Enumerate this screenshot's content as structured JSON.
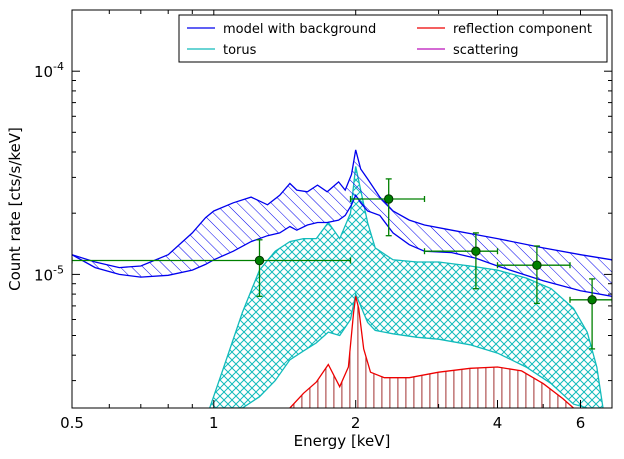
{
  "chart_data": {
    "type": "line",
    "xlabel": "Energy [keV]",
    "ylabel": "Count rate [cts/s/keV]",
    "x_scale": "log",
    "y_scale": "log",
    "xlim": [
      0.5,
      7.0
    ],
    "ylim": [
      2.2e-06,
      0.0002
    ],
    "x_ticks": [
      {
        "value": 0.5,
        "label": "0.5"
      },
      {
        "value": 1,
        "label": "1"
      },
      {
        "value": 2,
        "label": "2"
      },
      {
        "value": 4,
        "label": "4"
      },
      {
        "value": 6,
        "label": "6"
      }
    ],
    "y_ticks": [
      {
        "value": 1e-05,
        "base": "10",
        "exp": "-5"
      },
      {
        "value": 0.0001,
        "base": "10",
        "exp": "-4"
      }
    ],
    "legend": {
      "placement": "top-right",
      "entries": [
        {
          "label": "model with background",
          "color": "#0000ee"
        },
        {
          "label": "reflection component",
          "color": "#ee0000"
        },
        {
          "label": "torus",
          "color": "#11bbbb"
        },
        {
          "label": "scattering",
          "color": "#bb11bb"
        }
      ]
    },
    "colors": {
      "model": "#0000ee",
      "torus": "#11bbbb",
      "reflection": "#ee0000",
      "reflection_hatch": "#a03030",
      "data": "#008000"
    },
    "series": [
      {
        "name": "model with background",
        "kind": "band",
        "points": [
          [
            0.5,
            1.25e-05,
            1.25e-05
          ],
          [
            0.56,
            1.08e-05,
            1.15e-05
          ],
          [
            0.63,
            1e-05,
            1.08e-05
          ],
          [
            0.7,
            9.7e-06,
            1.1e-05
          ],
          [
            0.8,
            9.9e-06,
            1.25e-05
          ],
          [
            0.9,
            1.05e-05,
            1.6e-05
          ],
          [
            0.96,
            1.12e-05,
            1.9e-05
          ],
          [
            1.0,
            1.18e-05,
            2.05e-05
          ],
          [
            1.1,
            1.3e-05,
            2.25e-05
          ],
          [
            1.2,
            1.45e-05,
            2.4e-05
          ],
          [
            1.3,
            1.55e-05,
            2.2e-05
          ],
          [
            1.38,
            1.6e-05,
            2.45e-05
          ],
          [
            1.45,
            1.72e-05,
            2.8e-05
          ],
          [
            1.5,
            1.65e-05,
            2.6e-05
          ],
          [
            1.58,
            1.75e-05,
            2.55e-05
          ],
          [
            1.66,
            1.8e-05,
            2.75e-05
          ],
          [
            1.74,
            1.8e-05,
            2.55e-05
          ],
          [
            1.84,
            1.85e-05,
            2.85e-05
          ],
          [
            1.9,
            1.95e-05,
            2.6e-05
          ],
          [
            1.96,
            2.2e-05,
            3.1e-05
          ],
          [
            2.0,
            2.45e-05,
            4.1e-05
          ],
          [
            2.05,
            2.25e-05,
            3.3e-05
          ],
          [
            2.12,
            2.05e-05,
            2.95e-05
          ],
          [
            2.25,
            1.95e-05,
            2.4e-05
          ],
          [
            2.4,
            1.6e-05,
            2.05e-05
          ],
          [
            2.6,
            1.4e-05,
            1.85e-05
          ],
          [
            2.8,
            1.3e-05,
            1.75e-05
          ],
          [
            3.2,
            1.28e-05,
            1.65e-05
          ],
          [
            3.6,
            1.2e-05,
            1.57e-05
          ],
          [
            4.0,
            1.1e-05,
            1.5e-05
          ],
          [
            5.0,
            9.3e-06,
            1.35e-05
          ],
          [
            6.0,
            8.3e-06,
            1.25e-05
          ],
          [
            7.0,
            7.8e-06,
            1.18e-05
          ]
        ]
      },
      {
        "name": "torus",
        "kind": "band",
        "points": [
          [
            0.98,
            2.2e-06,
            2.2e-06
          ],
          [
            1.05,
            2.2e-06,
            3.5e-06
          ],
          [
            1.15,
            2.2e-06,
            6.5e-06
          ],
          [
            1.25,
            2.5e-06,
            1.05e-05
          ],
          [
            1.35,
            3e-06,
            1.3e-05
          ],
          [
            1.45,
            3.8e-06,
            1.45e-05
          ],
          [
            1.55,
            4.2e-06,
            1.5e-05
          ],
          [
            1.65,
            4.6e-06,
            1.5e-05
          ],
          [
            1.75,
            5.2e-06,
            1.8e-05
          ],
          [
            1.85,
            5e-06,
            1.5e-05
          ],
          [
            1.95,
            6e-06,
            2e-05
          ],
          [
            2.0,
            8e-06,
            3.4e-05
          ],
          [
            2.05,
            7e-06,
            2.6e-05
          ],
          [
            2.12,
            5.8e-06,
            1.8e-05
          ],
          [
            2.2,
            5.3e-06,
            1.35e-05
          ],
          [
            2.4,
            5.1e-06,
            1.18e-05
          ],
          [
            2.7,
            4.9e-06,
            1.15e-05
          ],
          [
            3.0,
            4.8e-06,
            1.15e-05
          ],
          [
            3.5,
            4.5e-06,
            1.1e-05
          ],
          [
            4.0,
            4.1e-06,
            1.05e-05
          ],
          [
            4.6,
            3.5e-06,
            9.6e-06
          ],
          [
            5.2,
            2.9e-06,
            8.5e-06
          ],
          [
            5.8,
            2.3e-06,
            6.8e-06
          ],
          [
            6.2,
            2.2e-06,
            5.2e-06
          ],
          [
            6.5,
            2.2e-06,
            3.5e-06
          ],
          [
            6.7,
            2.2e-06,
            2.2e-06
          ]
        ]
      },
      {
        "name": "reflection component",
        "kind": "line",
        "points": [
          [
            1.45,
            2.2e-06
          ],
          [
            1.55,
            2.6e-06
          ],
          [
            1.65,
            2.95e-06
          ],
          [
            1.75,
            3.6e-06
          ],
          [
            1.85,
            2.8e-06
          ],
          [
            1.93,
            3.5e-06
          ],
          [
            1.98,
            6.5e-06
          ],
          [
            2.0,
            7.8e-06
          ],
          [
            2.03,
            6.8e-06
          ],
          [
            2.08,
            4.3e-06
          ],
          [
            2.15,
            3.3e-06
          ],
          [
            2.3,
            3.1e-06
          ],
          [
            2.6,
            3.1e-06
          ],
          [
            3.0,
            3.3e-06
          ],
          [
            3.5,
            3.45e-06
          ],
          [
            4.0,
            3.5e-06
          ],
          [
            4.5,
            3.35e-06
          ],
          [
            5.0,
            2.9e-06
          ],
          [
            5.5,
            2.45e-06
          ],
          [
            5.8,
            2.2e-06
          ]
        ]
      },
      {
        "name": "data",
        "kind": "errorbar",
        "points": [
          {
            "x": 1.25,
            "xerr": [
              0.5,
              1.95
            ],
            "y": 1.17e-05,
            "yerr": [
              7.8e-06,
              1.48e-05
            ]
          },
          {
            "x": 2.35,
            "xerr": [
              1.95,
              2.8
            ],
            "y": 2.35e-05,
            "yerr": [
              1.55e-05,
              2.95e-05
            ]
          },
          {
            "x": 3.6,
            "xerr": [
              2.8,
              4.0
            ],
            "y": 1.3e-05,
            "yerr": [
              8.5e-06,
              1.6e-05
            ]
          },
          {
            "x": 4.85,
            "xerr": [
              4.0,
              5.7
            ],
            "y": 1.11e-05,
            "yerr": [
              7.2e-06,
              1.38e-05
            ]
          },
          {
            "x": 6.35,
            "xerr": [
              5.7,
              7.0
            ],
            "y": 7.5e-06,
            "yerr": [
              4.3e-06,
              9.5e-06
            ]
          }
        ]
      }
    ]
  }
}
